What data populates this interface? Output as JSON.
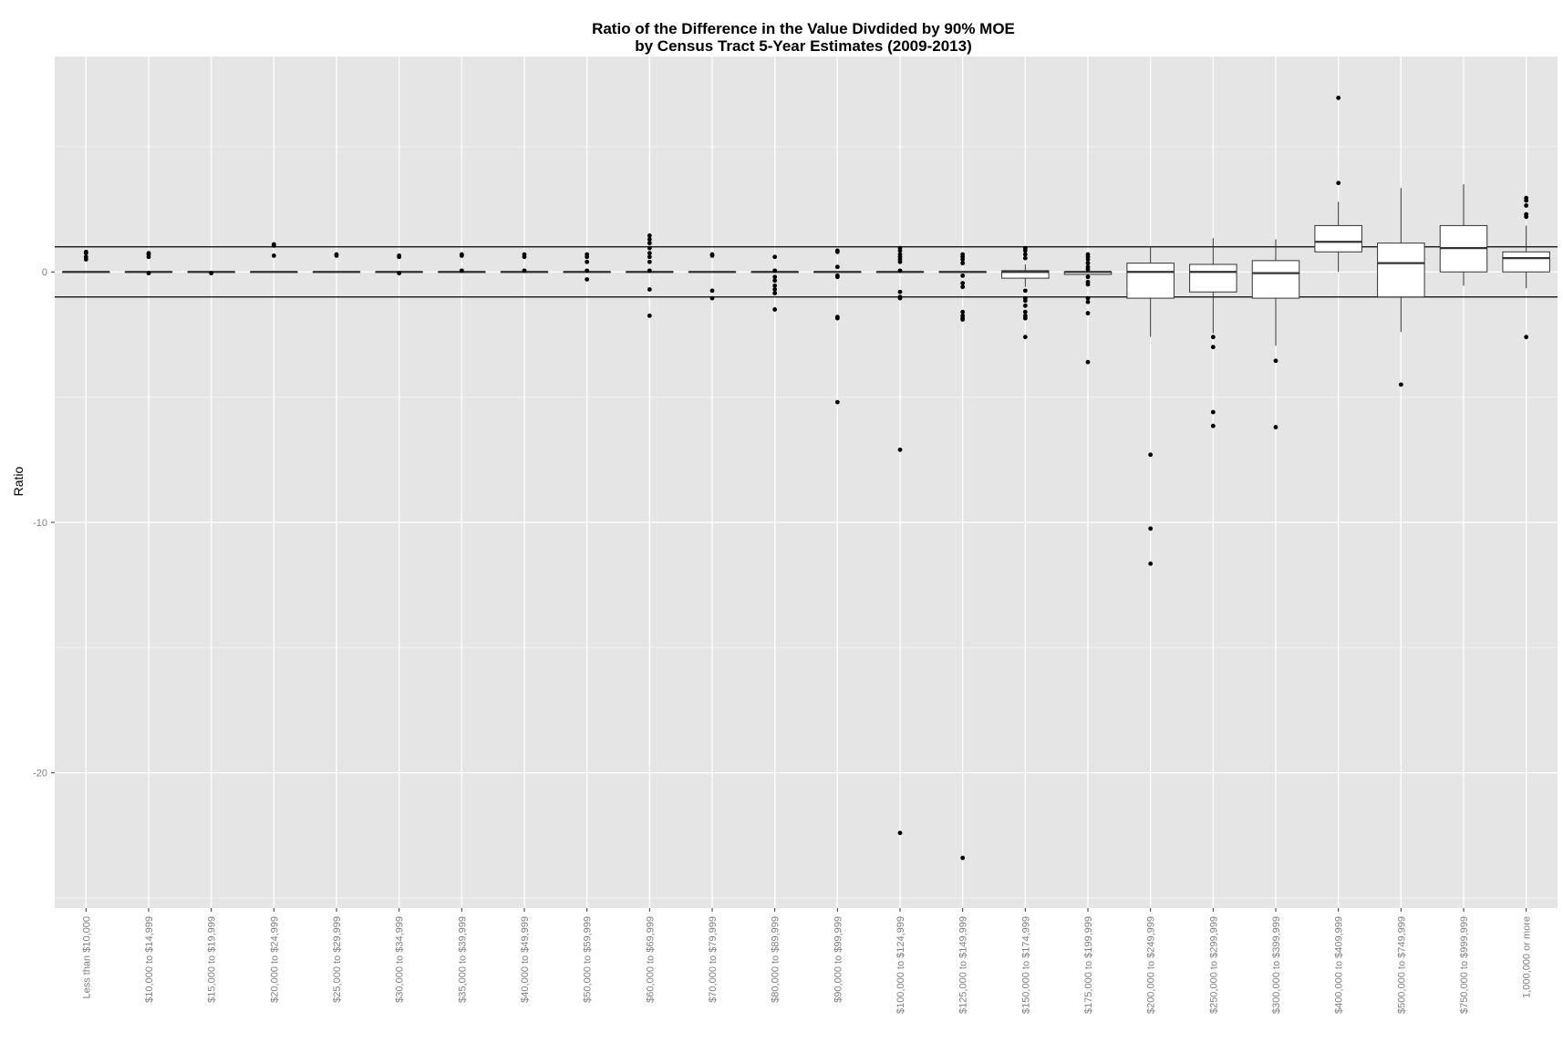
{
  "chart_data": {
    "type": "boxplot",
    "title": "Ratio of the Difference in the Value Divdided by 90% MOE",
    "subtitle": "by Census Tract 5-Year Estimates (2009-2013)",
    "xlabel": "",
    "ylabel": "Ratio",
    "ylim": [
      -25.4,
      8.6
    ],
    "yticks": [
      0,
      -10,
      -20
    ],
    "ytick_labels": [
      "0",
      "-10",
      "-20"
    ],
    "grid": true,
    "reference_lines": [
      1,
      -1
    ],
    "categories": [
      "Less than $10,000",
      "$10,000 to $14,999",
      "$15,000 to $19,999",
      "$20,000 to $24,999",
      "$25,000 to $29,999",
      "$30,000 to $34,999",
      "$35,000 to $39,999",
      "$40,000 to $49,999",
      "$50,000 to $59,999",
      "$60,000 to $69,999",
      "$70,000 to $79,999",
      "$80,000 to $89,999",
      "$90,000 to $99,999",
      "$100,000 to $124,999",
      "$125,000 to $149,999",
      "$150,000 to $174,999",
      "$175,000 to $199,999",
      "$200,000 to $249,999",
      "$250,000 to $299,999",
      "$300,000 to $399,999",
      "$400,000 to $409,999",
      "$500,000 to $749,999",
      "$750,000 to $999,999",
      "1,000,000 or more"
    ],
    "boxes": [
      {
        "q1": 0,
        "median": 0,
        "q3": 0,
        "whisker_low": 0,
        "whisker_high": 0,
        "outliers": [
          0.5,
          0.6,
          0.75,
          0.8
        ]
      },
      {
        "q1": 0,
        "median": 0,
        "q3": 0,
        "whisker_low": 0,
        "whisker_high": 0,
        "outliers": [
          0.6,
          0.7,
          0.75,
          -0.05
        ]
      },
      {
        "q1": 0,
        "median": 0,
        "q3": 0,
        "whisker_low": 0,
        "whisker_high": 0,
        "outliers": [
          -0.05
        ]
      },
      {
        "q1": 0,
        "median": 0,
        "q3": 0,
        "whisker_low": 0,
        "whisker_high": 0,
        "outliers": [
          1.1,
          1.05,
          0.65
        ]
      },
      {
        "q1": 0,
        "median": 0,
        "q3": 0,
        "whisker_low": 0,
        "whisker_high": 0,
        "outliers": [
          0.7,
          0.65
        ]
      },
      {
        "q1": 0,
        "median": 0,
        "q3": 0,
        "whisker_low": 0,
        "whisker_high": 0,
        "outliers": [
          0.65,
          0.6,
          -0.05
        ]
      },
      {
        "q1": 0,
        "median": 0,
        "q3": 0,
        "whisker_low": 0,
        "whisker_high": 0,
        "outliers": [
          0.7,
          0.65,
          0.05
        ]
      },
      {
        "q1": 0,
        "median": 0,
        "q3": 0,
        "whisker_low": 0,
        "whisker_high": 0,
        "outliers": [
          0.7,
          0.6,
          0.05
        ]
      },
      {
        "q1": 0,
        "median": 0,
        "q3": 0,
        "whisker_low": 0,
        "whisker_high": 0,
        "outliers": [
          0.7,
          0.6,
          0.4,
          0.05,
          -0.3
        ]
      },
      {
        "q1": 0,
        "median": 0,
        "q3": 0,
        "whisker_low": 0,
        "whisker_high": 0,
        "outliers": [
          1.45,
          1.3,
          1.15,
          0.95,
          0.75,
          0.6,
          0.4,
          0.05,
          -0.7,
          -1.75
        ]
      },
      {
        "q1": 0,
        "median": 0,
        "q3": 0,
        "whisker_low": 0,
        "whisker_high": 0,
        "outliers": [
          0.7,
          0.65,
          -0.75,
          -1.05
        ]
      },
      {
        "q1": 0,
        "median": 0,
        "q3": 0,
        "whisker_low": 0,
        "whisker_high": 0,
        "outliers": [
          0.6,
          0.05,
          -0.2,
          -0.35,
          -0.55,
          -0.7,
          -0.85,
          -1.5
        ]
      },
      {
        "q1": 0,
        "median": 0,
        "q3": 0,
        "whisker_low": 0,
        "whisker_high": 0,
        "outliers": [
          0.85,
          0.8,
          0.2,
          -0.15,
          -0.2,
          -1.8,
          -1.85,
          -5.2
        ]
      },
      {
        "q1": 0,
        "median": 0,
        "q3": 0,
        "whisker_low": 0,
        "whisker_high": 0,
        "outliers": [
          0.95,
          0.85,
          0.7,
          0.6,
          0.5,
          0.4,
          0.05,
          -0.8,
          -1.0,
          -1.05,
          -7.1,
          -22.4
        ]
      },
      {
        "q1": 0,
        "median": 0,
        "q3": 0,
        "whisker_low": 0,
        "whisker_high": 0,
        "outliers": [
          0.7,
          0.6,
          0.5,
          0.35,
          -0.15,
          -0.45,
          -0.6,
          -1.6,
          -1.75,
          -1.85,
          -1.9,
          -23.4
        ]
      },
      {
        "q1": -0.25,
        "median": 0,
        "q3": 0.05,
        "whisker_low": -0.6,
        "whisker_high": 0.3,
        "outliers": [
          0.95,
          0.85,
          0.7,
          0.55,
          -0.75,
          -1.05,
          -1.15,
          -1.35,
          -1.6,
          -1.75,
          -1.85,
          -2.6
        ]
      },
      {
        "q1": -0.1,
        "median": 0,
        "q3": 0,
        "whisker_low": -0.1,
        "whisker_high": 0,
        "outliers": [
          0.7,
          0.6,
          0.5,
          0.35,
          0.2,
          0.1,
          -0.2,
          -0.4,
          -0.5,
          -1.05,
          -1.2,
          -1.65,
          -3.6
        ]
      },
      {
        "q1": -1.05,
        "median": 0,
        "q3": 0.35,
        "whisker_low": -2.6,
        "whisker_high": 1.0,
        "outliers": [
          -7.3,
          -10.25,
          -11.65
        ]
      },
      {
        "q1": -0.8,
        "median": 0,
        "q3": 0.3,
        "whisker_low": -2.45,
        "whisker_high": 1.35,
        "outliers": [
          -2.6,
          -3.0,
          -5.6,
          -6.15
        ]
      },
      {
        "q1": -1.05,
        "median": -0.05,
        "q3": 0.45,
        "whisker_low": -2.95,
        "whisker_high": 1.3,
        "outliers": [
          -3.55,
          -6.2
        ]
      },
      {
        "q1": 0.8,
        "median": 1.2,
        "q3": 1.85,
        "whisker_low": 0,
        "whisker_high": 2.8,
        "outliers": [
          3.55,
          6.95
        ]
      },
      {
        "q1": -1.0,
        "median": 0.35,
        "q3": 1.15,
        "whisker_low": -2.4,
        "whisker_high": 3.35,
        "outliers": [
          -4.5
        ]
      },
      {
        "q1": 0,
        "median": 0.95,
        "q3": 1.85,
        "whisker_low": -0.55,
        "whisker_high": 3.5,
        "outliers": []
      },
      {
        "q1": 0,
        "median": 0.55,
        "q3": 0.8,
        "whisker_low": -0.65,
        "whisker_high": 1.85,
        "outliers": [
          2.95,
          2.85,
          2.65,
          2.3,
          2.2,
          -2.6
        ]
      }
    ],
    "colors": {
      "panel": "#e5e5e5",
      "grid_major": "#ffffff",
      "grid_minor": "#f2f2f2",
      "box_fill": "#ffffff",
      "line": "#333333",
      "tick_text": "#7f7f7f"
    }
  }
}
